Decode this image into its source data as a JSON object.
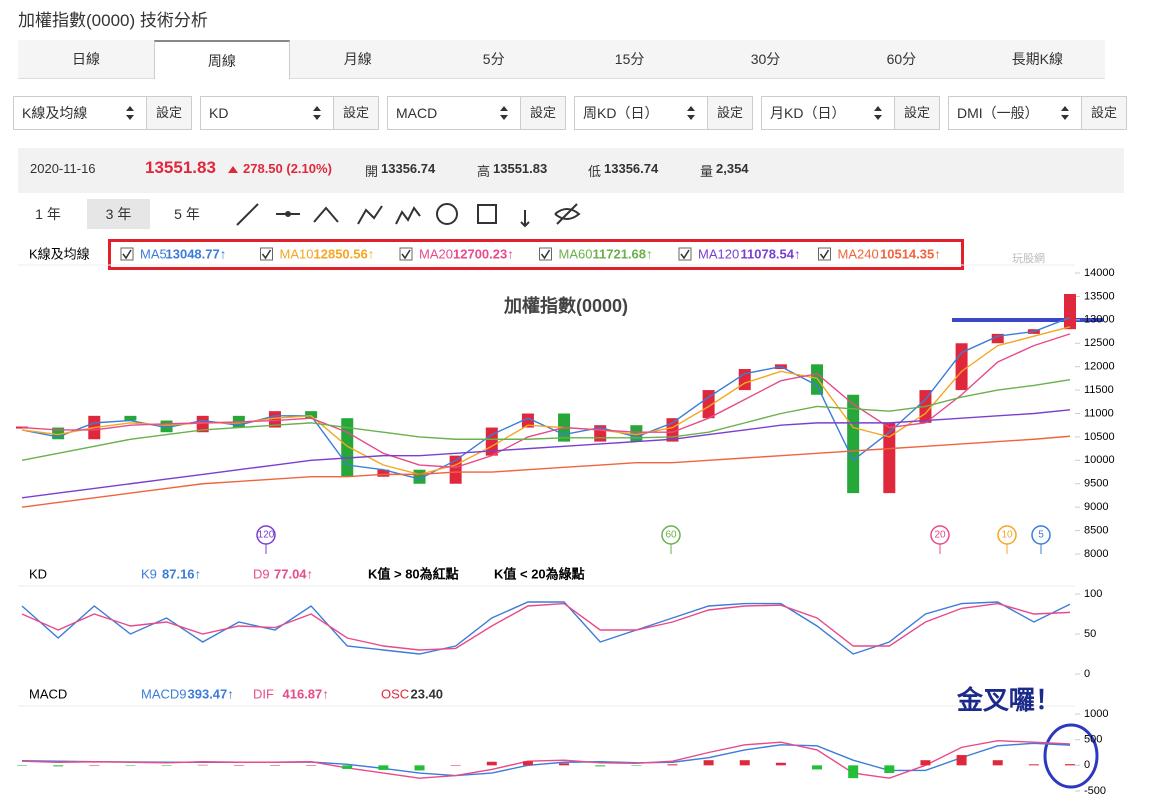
{
  "header": {
    "title": "加權指數(0000) 技術分析",
    "watermark": "玩股網"
  },
  "tabs": [
    "日線",
    "周線",
    "月線",
    "5分",
    "15分",
    "30分",
    "60分",
    "長期K線"
  ],
  "selectors": [
    {
      "label": "K線及均線",
      "button": "設定"
    },
    {
      "label": "KD",
      "button": "設定"
    },
    {
      "label": "MACD",
      "button": "設定"
    },
    {
      "label": "周KD（日）",
      "button": "設定"
    },
    {
      "label": "月KD（日）",
      "button": "設定"
    },
    {
      "label": "DMI（一般）",
      "button": "設定"
    }
  ],
  "quote": {
    "date": "2020-11-16",
    "price": "13551.83",
    "change": "278.50 (2.10%)",
    "fields": [
      {
        "label": "開",
        "value": "13356.74"
      },
      {
        "label": "高",
        "value": "13551.83"
      },
      {
        "label": "低",
        "value": "13356.74"
      },
      {
        "label": "量",
        "value": "2,354"
      }
    ]
  },
  "ranges": [
    "1 年",
    "3 年",
    "5 年"
  ],
  "chart_data": [
    {
      "type": "candlestick",
      "label": "K線及均線",
      "title": "加權指數(0000)",
      "values": [
        10700,
        10450,
        10950,
        10850,
        10600,
        10950,
        10700,
        11050,
        10900,
        9650,
        9800,
        9500,
        10100,
        10700,
        11000,
        10400,
        10750,
        10400,
        10900,
        11500,
        11950,
        12050,
        11400,
        9300,
        10800,
        11500,
        12500,
        12700,
        12800,
        13551.83
      ],
      "up_color": "#e0283c",
      "down_color": "#25a73a",
      "series": [
        {
          "name": "MA5",
          "color": "#3b7dd8",
          "last_label": "13048.77↑",
          "values": [
            10650,
            10500,
            10800,
            10850,
            10700,
            10850,
            10750,
            10950,
            10950,
            9900,
            9800,
            9600,
            10000,
            10550,
            10900,
            10550,
            10700,
            10500,
            10800,
            11350,
            11850,
            12000,
            11600,
            10000,
            10600,
            11300,
            12300,
            12650,
            12750,
            13048.77
          ]
        },
        {
          "name": "MA10",
          "color": "#f5a623",
          "last_label": "12850.56↑",
          "values": [
            10650,
            10550,
            10700,
            10800,
            10750,
            10800,
            10800,
            10900,
            10950,
            10300,
            9900,
            9700,
            9900,
            10300,
            10750,
            10700,
            10650,
            10550,
            10700,
            11150,
            11650,
            11900,
            11750,
            10700,
            10500,
            11000,
            11900,
            12450,
            12650,
            12850.56
          ]
        },
        {
          "name": "MA20",
          "color": "#e84a8a",
          "last_label": "12700.23↑",
          "values": [
            10700,
            10650,
            10650,
            10750,
            10780,
            10800,
            10820,
            10850,
            10900,
            10600,
            10150,
            9900,
            9850,
            10100,
            10500,
            10700,
            10650,
            10600,
            10600,
            10900,
            11300,
            11700,
            11850,
            11200,
            10700,
            10800,
            11400,
            12100,
            12450,
            12700.23
          ]
        },
        {
          "name": "MA60",
          "color": "#6ab04c",
          "last_label": "11721.68↑",
          "values": [
            10000,
            10150,
            10300,
            10450,
            10550,
            10650,
            10700,
            10750,
            10800,
            10700,
            10600,
            10500,
            10450,
            10450,
            10450,
            10480,
            10480,
            10480,
            10500,
            10600,
            10800,
            11000,
            11150,
            11100,
            11050,
            11150,
            11350,
            11500,
            11600,
            11721.68
          ]
        },
        {
          "name": "MA120",
          "color": "#7b3fd0",
          "last_label": "11078.54↑",
          "values": [
            9200,
            9300,
            9400,
            9500,
            9600,
            9700,
            9800,
            9900,
            10000,
            10050,
            10100,
            10100,
            10150,
            10200,
            10250,
            10300,
            10350,
            10400,
            10450,
            10550,
            10650,
            10750,
            10800,
            10800,
            10800,
            10850,
            10900,
            10950,
            11000,
            11078.54
          ]
        },
        {
          "name": "MA240",
          "color": "#f0643c",
          "last_label": "10514.35↑",
          "values": [
            9000,
            9100,
            9200,
            9300,
            9400,
            9500,
            9550,
            9600,
            9650,
            9650,
            9700,
            9700,
            9750,
            9750,
            9800,
            9850,
            9900,
            9950,
            9950,
            10000,
            10050,
            10100,
            10150,
            10200,
            10250,
            10300,
            10350,
            10400,
            10450,
            10514.35
          ]
        }
      ],
      "markers": [
        {
          "label": "120",
          "color": "#7b3fd0"
        },
        {
          "label": "60",
          "color": "#6ab04c"
        },
        {
          "label": "20",
          "color": "#e84a8a"
        },
        {
          "label": "10",
          "color": "#f5a623"
        },
        {
          "label": "5",
          "color": "#3b7dd8"
        }
      ],
      "ylim": [
        8000,
        14000
      ],
      "yticks": [
        8000,
        8500,
        9000,
        9500,
        10000,
        10500,
        11000,
        11500,
        12000,
        12500,
        13000,
        13500,
        14000
      ]
    },
    {
      "type": "line",
      "label": "KD",
      "notes": [
        "K值 > 80為紅點",
        "K值 < 20為綠點"
      ],
      "series": [
        {
          "name": "K9",
          "color": "#3b7dd8",
          "last_label": "87.16↑",
          "values": [
            85,
            45,
            85,
            50,
            70,
            40,
            65,
            55,
            85,
            35,
            30,
            25,
            35,
            70,
            90,
            90,
            40,
            55,
            70,
            85,
            88,
            88,
            60,
            25,
            40,
            75,
            88,
            90,
            65,
            87.16
          ]
        },
        {
          "name": "D9",
          "color": "#e84a8a",
          "last_label": "77.04↑",
          "values": [
            75,
            55,
            75,
            60,
            65,
            50,
            60,
            58,
            75,
            45,
            35,
            30,
            32,
            60,
            85,
            88,
            55,
            55,
            65,
            80,
            85,
            86,
            70,
            35,
            35,
            65,
            82,
            88,
            75,
            77.04
          ]
        }
      ],
      "ylim": [
        0,
        100
      ],
      "yticks": [
        0,
        50,
        100
      ]
    },
    {
      "type": "macd",
      "label": "MACD",
      "annotation": "金叉囉！",
      "series": [
        {
          "name": "MACD9",
          "color": "#3b7dd8",
          "last_label": "393.47↑",
          "values": [
            90,
            80,
            70,
            65,
            60,
            60,
            60,
            60,
            65,
            20,
            -60,
            -150,
            -200,
            -150,
            0,
            60,
            70,
            50,
            60,
            150,
            300,
            400,
            380,
            100,
            -100,
            -100,
            150,
            380,
            430,
            393.47
          ]
        },
        {
          "name": "DIF",
          "color": "#e84a8a",
          "last_label": "416.87↑",
          "values": [
            80,
            60,
            70,
            60,
            50,
            70,
            60,
            60,
            70,
            -50,
            -150,
            -250,
            -200,
            -80,
            80,
            100,
            50,
            40,
            80,
            250,
            400,
            450,
            300,
            -150,
            -250,
            0,
            350,
            480,
            450,
            416.87
          ]
        },
        {
          "name": "OSC",
          "color": "#e0283c",
          "negative_color": "#22c03a",
          "last_label": "23.40",
          "bars": true,
          "values": [
            -10,
            -20,
            0,
            -5,
            -10,
            10,
            0,
            0,
            5,
            -70,
            -90,
            -100,
            0,
            70,
            80,
            40,
            -20,
            -10,
            20,
            100,
            100,
            50,
            -80,
            -250,
            -150,
            100,
            200,
            100,
            20,
            23.4
          ]
        }
      ],
      "ylim": [
        -500,
        1000
      ],
      "yticks": [
        -500,
        0,
        500,
        1000
      ]
    }
  ]
}
